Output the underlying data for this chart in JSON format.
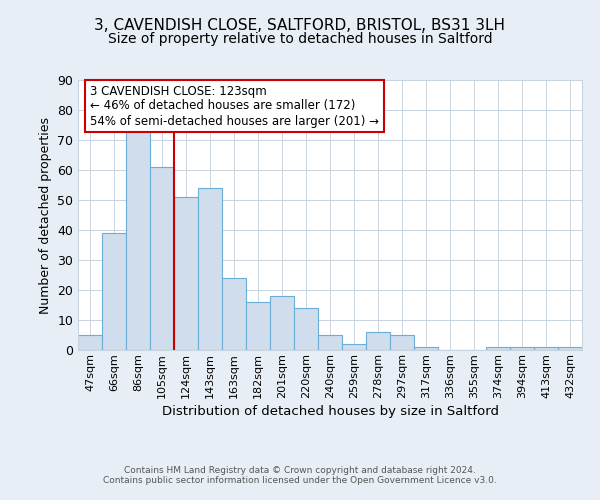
{
  "title_line1": "3, CAVENDISH CLOSE, SALTFORD, BRISTOL, BS31 3LH",
  "title_line2": "Size of property relative to detached houses in Saltford",
  "xlabel": "Distribution of detached houses by size in Saltford",
  "ylabel": "Number of detached properties",
  "bin_labels": [
    "47sqm",
    "66sqm",
    "86sqm",
    "105sqm",
    "124sqm",
    "143sqm",
    "163sqm",
    "182sqm",
    "201sqm",
    "220sqm",
    "240sqm",
    "259sqm",
    "278sqm",
    "297sqm",
    "317sqm",
    "336sqm",
    "355sqm",
    "374sqm",
    "394sqm",
    "413sqm",
    "432sqm"
  ],
  "bar_heights": [
    5,
    39,
    73,
    61,
    51,
    54,
    24,
    16,
    18,
    14,
    5,
    2,
    6,
    5,
    1,
    0,
    0,
    1,
    1,
    1,
    1
  ],
  "bar_color": "#cfdded",
  "bar_edge_color": "#6aaed6",
  "vline_x_idx": 4,
  "vline_color": "#cc0000",
  "annotation_line1": "3 CAVENDISH CLOSE: 123sqm",
  "annotation_line2": "← 46% of detached houses are smaller (172)",
  "annotation_line3": "54% of semi-detached houses are larger (201) →",
  "annotation_box_edge_color": "#cc0000",
  "annotation_bg": "white",
  "ylim": [
    0,
    90
  ],
  "yticks": [
    0,
    10,
    20,
    30,
    40,
    50,
    60,
    70,
    80,
    90
  ],
  "footer_line1": "Contains HM Land Registry data © Crown copyright and database right 2024.",
  "footer_line2": "Contains public sector information licensed under the Open Government Licence v3.0.",
  "bg_color": "#e8eef5",
  "plot_bg_color": "white",
  "grid_color": "#c8d4e0",
  "title1_fontsize": 11,
  "title2_fontsize": 10,
  "xlabel_fontsize": 9.5,
  "ylabel_fontsize": 9,
  "xtick_fontsize": 8,
  "ytick_fontsize": 9,
  "footer_fontsize": 6.5
}
